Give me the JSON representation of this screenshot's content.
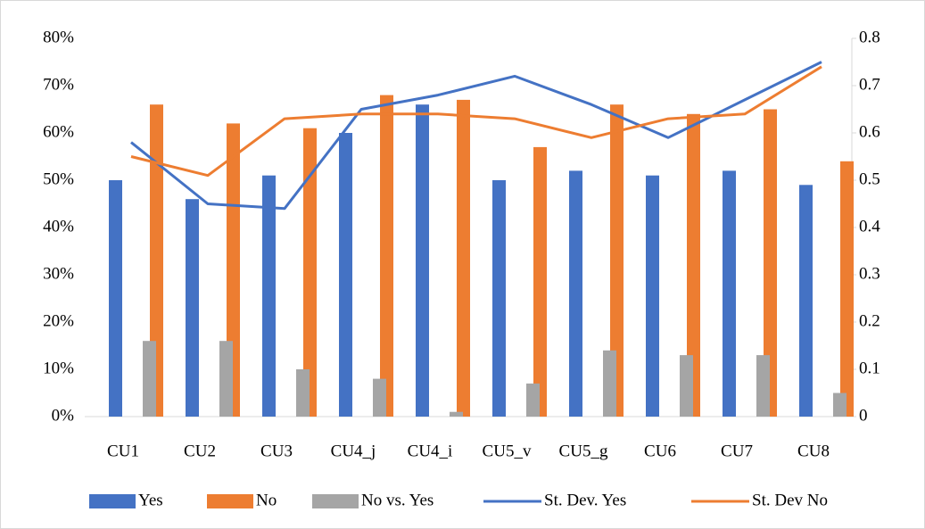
{
  "chart_data": {
    "type": "bar",
    "categories": [
      "CU1",
      "CU2",
      "CU3",
      "CU4_j",
      "CU4_i",
      "CU5_v",
      "CU5_g",
      "CU6",
      "CU7",
      "CU8"
    ],
    "series": [
      {
        "name": "Yes",
        "color": "#4472c4",
        "values": [
          50,
          46,
          51,
          60,
          66,
          50,
          52,
          51,
          52,
          49
        ]
      },
      {
        "name": "No",
        "color": "#ed7d31",
        "values": [
          66,
          62,
          61,
          68,
          67,
          57,
          66,
          64,
          65,
          54
        ]
      },
      {
        "name": "No vs. Yes",
        "color": "#a5a5a5",
        "values": [
          16,
          16,
          10,
          8,
          1,
          7,
          14,
          13,
          13,
          5
        ]
      },
      {
        "name": "St. Dev. Yes",
        "type": "line",
        "axis": "y2",
        "color": "#4472c4",
        "values": [
          0.58,
          0.45,
          0.44,
          0.65,
          0.68,
          0.72,
          0.66,
          0.59,
          0.67,
          0.75
        ]
      },
      {
        "name": "St. Dev No",
        "type": "line",
        "axis": "y2",
        "color": "#ed7d31",
        "values": [
          0.55,
          0.51,
          0.63,
          0.64,
          0.64,
          0.63,
          0.59,
          0.63,
          0.64,
          0.74
        ]
      }
    ],
    "ylim": [
      0,
      80
    ],
    "yticks": [
      {
        "value": 0,
        "label": "0%"
      },
      {
        "value": 10,
        "label": "10%"
      },
      {
        "value": 20,
        "label": "20%"
      },
      {
        "value": 30,
        "label": "30%"
      },
      {
        "value": 40,
        "label": "40%"
      },
      {
        "value": 50,
        "label": "50%"
      },
      {
        "value": 60,
        "label": "60%"
      },
      {
        "value": 70,
        "label": "70%"
      },
      {
        "value": 80,
        "label": "80%"
      }
    ],
    "y2lim": [
      0,
      0.8
    ],
    "y2ticks": [
      0,
      0.1,
      0.2,
      0.3,
      0.4,
      0.5,
      0.6,
      0.7,
      0.8
    ],
    "legend": "bottom"
  }
}
